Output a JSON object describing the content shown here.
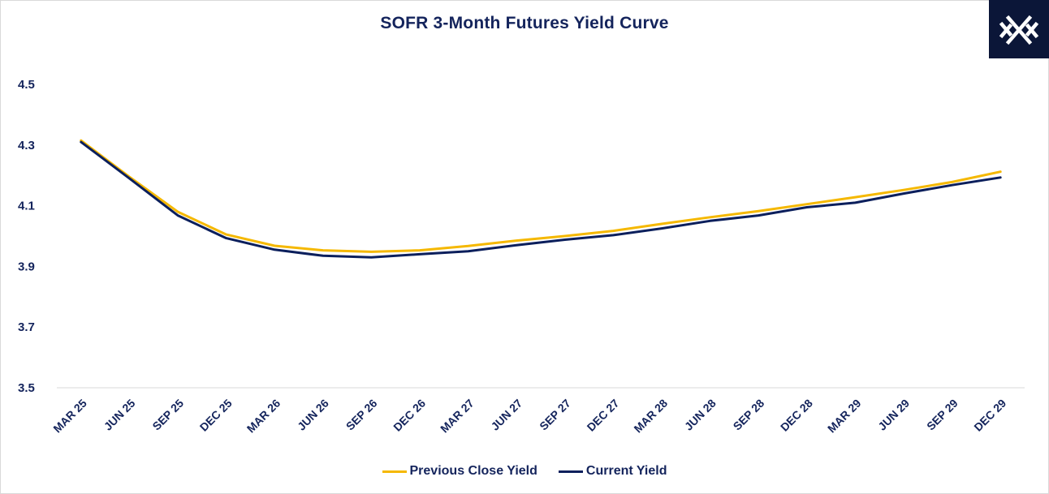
{
  "chart_data": {
    "type": "line",
    "title": "SOFR 3-Month Futures Yield Curve",
    "xlabel": "",
    "ylabel": "",
    "categories": [
      "MAR 25",
      "JUN 25",
      "SEP 25",
      "DEC 25",
      "MAR 26",
      "JUN 26",
      "SEP 26",
      "DEC 26",
      "MAR 27",
      "JUN 27",
      "SEP 27",
      "DEC 27",
      "MAR 28",
      "JUN 28",
      "SEP 28",
      "DEC 28",
      "MAR 29",
      "JUN 29",
      "SEP 29",
      "DEC 29"
    ],
    "ylim": [
      3.5,
      4.5
    ],
    "yticks": [
      "3.5",
      "3.7",
      "3.9",
      "4.1",
      "4.3",
      "4.5"
    ],
    "grid": false,
    "legend_position": "bottom-center",
    "series": [
      {
        "name": "Previous Close Yield",
        "color": "#f5b800",
        "values": [
          4.315,
          4.195,
          4.08,
          4.005,
          3.968,
          3.953,
          3.948,
          3.953,
          3.967,
          3.985,
          4.0,
          4.017,
          4.04,
          4.062,
          4.082,
          4.105,
          4.128,
          4.152,
          4.178,
          4.212
        ]
      },
      {
        "name": "Current Yield",
        "color": "#0b1f5c",
        "values": [
          4.31,
          4.19,
          4.068,
          3.993,
          3.955,
          3.935,
          3.93,
          3.94,
          3.95,
          3.97,
          3.988,
          4.003,
          4.025,
          4.05,
          4.068,
          4.095,
          4.11,
          4.14,
          4.168,
          4.193
        ]
      }
    ]
  },
  "logo": {
    "label": "X",
    "background": "#0b1638"
  }
}
